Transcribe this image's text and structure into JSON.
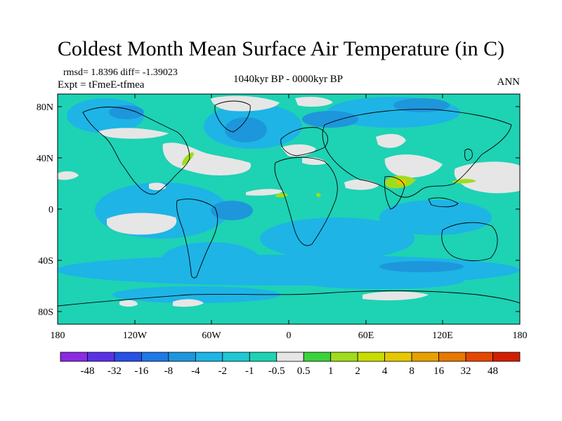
{
  "title": "Coldest Month Mean Surface Air Temperature (in C)",
  "stats": "rmsd= 1.8396 diff= -1.39023",
  "experiment": "Expt = tFmeE-tfmea",
  "period": "1040kyr BP - 0000kyr BP",
  "season": "ANN",
  "map": {
    "lat_ticks": [
      "80N",
      "40N",
      "0",
      "40S",
      "80S"
    ],
    "lon_ticks": [
      "180",
      "120W",
      "60W",
      "0",
      "60E",
      "120E",
      "180"
    ]
  },
  "colorbar": {
    "labels": [
      "-48",
      "-32",
      "-16",
      "-8",
      "-4",
      "-2",
      "-1",
      "-0.5",
      "0.5",
      "1",
      "2",
      "4",
      "8",
      "16",
      "32",
      "48"
    ],
    "colors": [
      "#8a2be2",
      "#5a32e6",
      "#2850e6",
      "#1e78e6",
      "#1e96dc",
      "#1eb4e6",
      "#1ec8d2",
      "#1ed2b4",
      "#e6e6e6",
      "#3cd23c",
      "#a0dc1e",
      "#c8dc00",
      "#e6c800",
      "#e6a000",
      "#e67800",
      "#e64600",
      "#d21e00"
    ]
  },
  "colors": {
    "ocean_base": "#1ed2b4",
    "neutral": "#e6e6e6",
    "negative_mid": "#1eb4e6",
    "negative_strong": "#1e96dc",
    "positive": "#a0dc1e"
  }
}
